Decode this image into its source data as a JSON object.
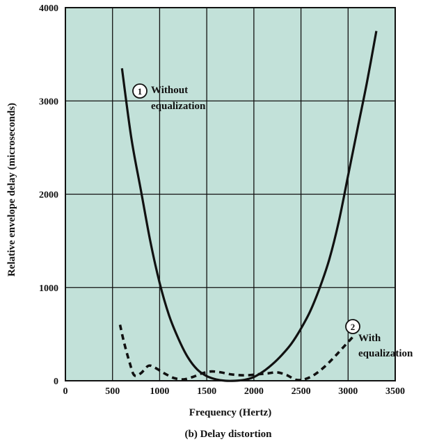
{
  "chart_data": {
    "type": "line",
    "caption": "(b) Delay distortion",
    "xlabel": "Frequency (Hertz)",
    "ylabel": "Relative envelope delay (microseconds)",
    "xlim": [
      0,
      3500
    ],
    "ylim": [
      0,
      4000
    ],
    "x_ticks": [
      "0",
      "500",
      "1000",
      "1500",
      "2000",
      "2500",
      "3000",
      "3500"
    ],
    "y_ticks": [
      "0",
      "1000",
      "2000",
      "3000",
      "4000"
    ],
    "grid": true,
    "colors": {
      "background": "#c2e1d9",
      "line": "#111111",
      "grid": "#111111"
    },
    "series": [
      {
        "marker": "1",
        "annotation": [
          "Without",
          "equalization"
        ],
        "style": "solid",
        "points": [
          [
            600,
            3350
          ],
          [
            700,
            2600
          ],
          [
            800,
            2050
          ],
          [
            900,
            1500
          ],
          [
            1000,
            1050
          ],
          [
            1100,
            700
          ],
          [
            1200,
            450
          ],
          [
            1300,
            250
          ],
          [
            1400,
            120
          ],
          [
            1500,
            50
          ],
          [
            1600,
            15
          ],
          [
            1700,
            0
          ],
          [
            1800,
            0
          ],
          [
            1900,
            10
          ],
          [
            2000,
            40
          ],
          [
            2100,
            100
          ],
          [
            2200,
            180
          ],
          [
            2300,
            280
          ],
          [
            2400,
            400
          ],
          [
            2500,
            560
          ],
          [
            2600,
            750
          ],
          [
            2700,
            1000
          ],
          [
            2800,
            1300
          ],
          [
            2900,
            1700
          ],
          [
            3000,
            2200
          ],
          [
            3100,
            2700
          ],
          [
            3200,
            3200
          ],
          [
            3300,
            3750
          ]
        ]
      },
      {
        "marker": "2",
        "annotation": [
          "With",
          "equalization"
        ],
        "style": "dashed",
        "points": [
          [
            580,
            600
          ],
          [
            620,
            420
          ],
          [
            680,
            200
          ],
          [
            730,
            60
          ],
          [
            800,
            80
          ],
          [
            880,
            160
          ],
          [
            950,
            140
          ],
          [
            1050,
            80
          ],
          [
            1150,
            30
          ],
          [
            1250,
            15
          ],
          [
            1350,
            40
          ],
          [
            1450,
            80
          ],
          [
            1550,
            100
          ],
          [
            1650,
            90
          ],
          [
            1750,
            70
          ],
          [
            1850,
            60
          ],
          [
            1950,
            60
          ],
          [
            2050,
            70
          ],
          [
            2150,
            80
          ],
          [
            2250,
            90
          ],
          [
            2350,
            60
          ],
          [
            2450,
            10
          ],
          [
            2550,
            20
          ],
          [
            2650,
            70
          ],
          [
            2750,
            150
          ],
          [
            2850,
            250
          ],
          [
            2950,
            360
          ],
          [
            3050,
            470
          ]
        ]
      }
    ]
  }
}
